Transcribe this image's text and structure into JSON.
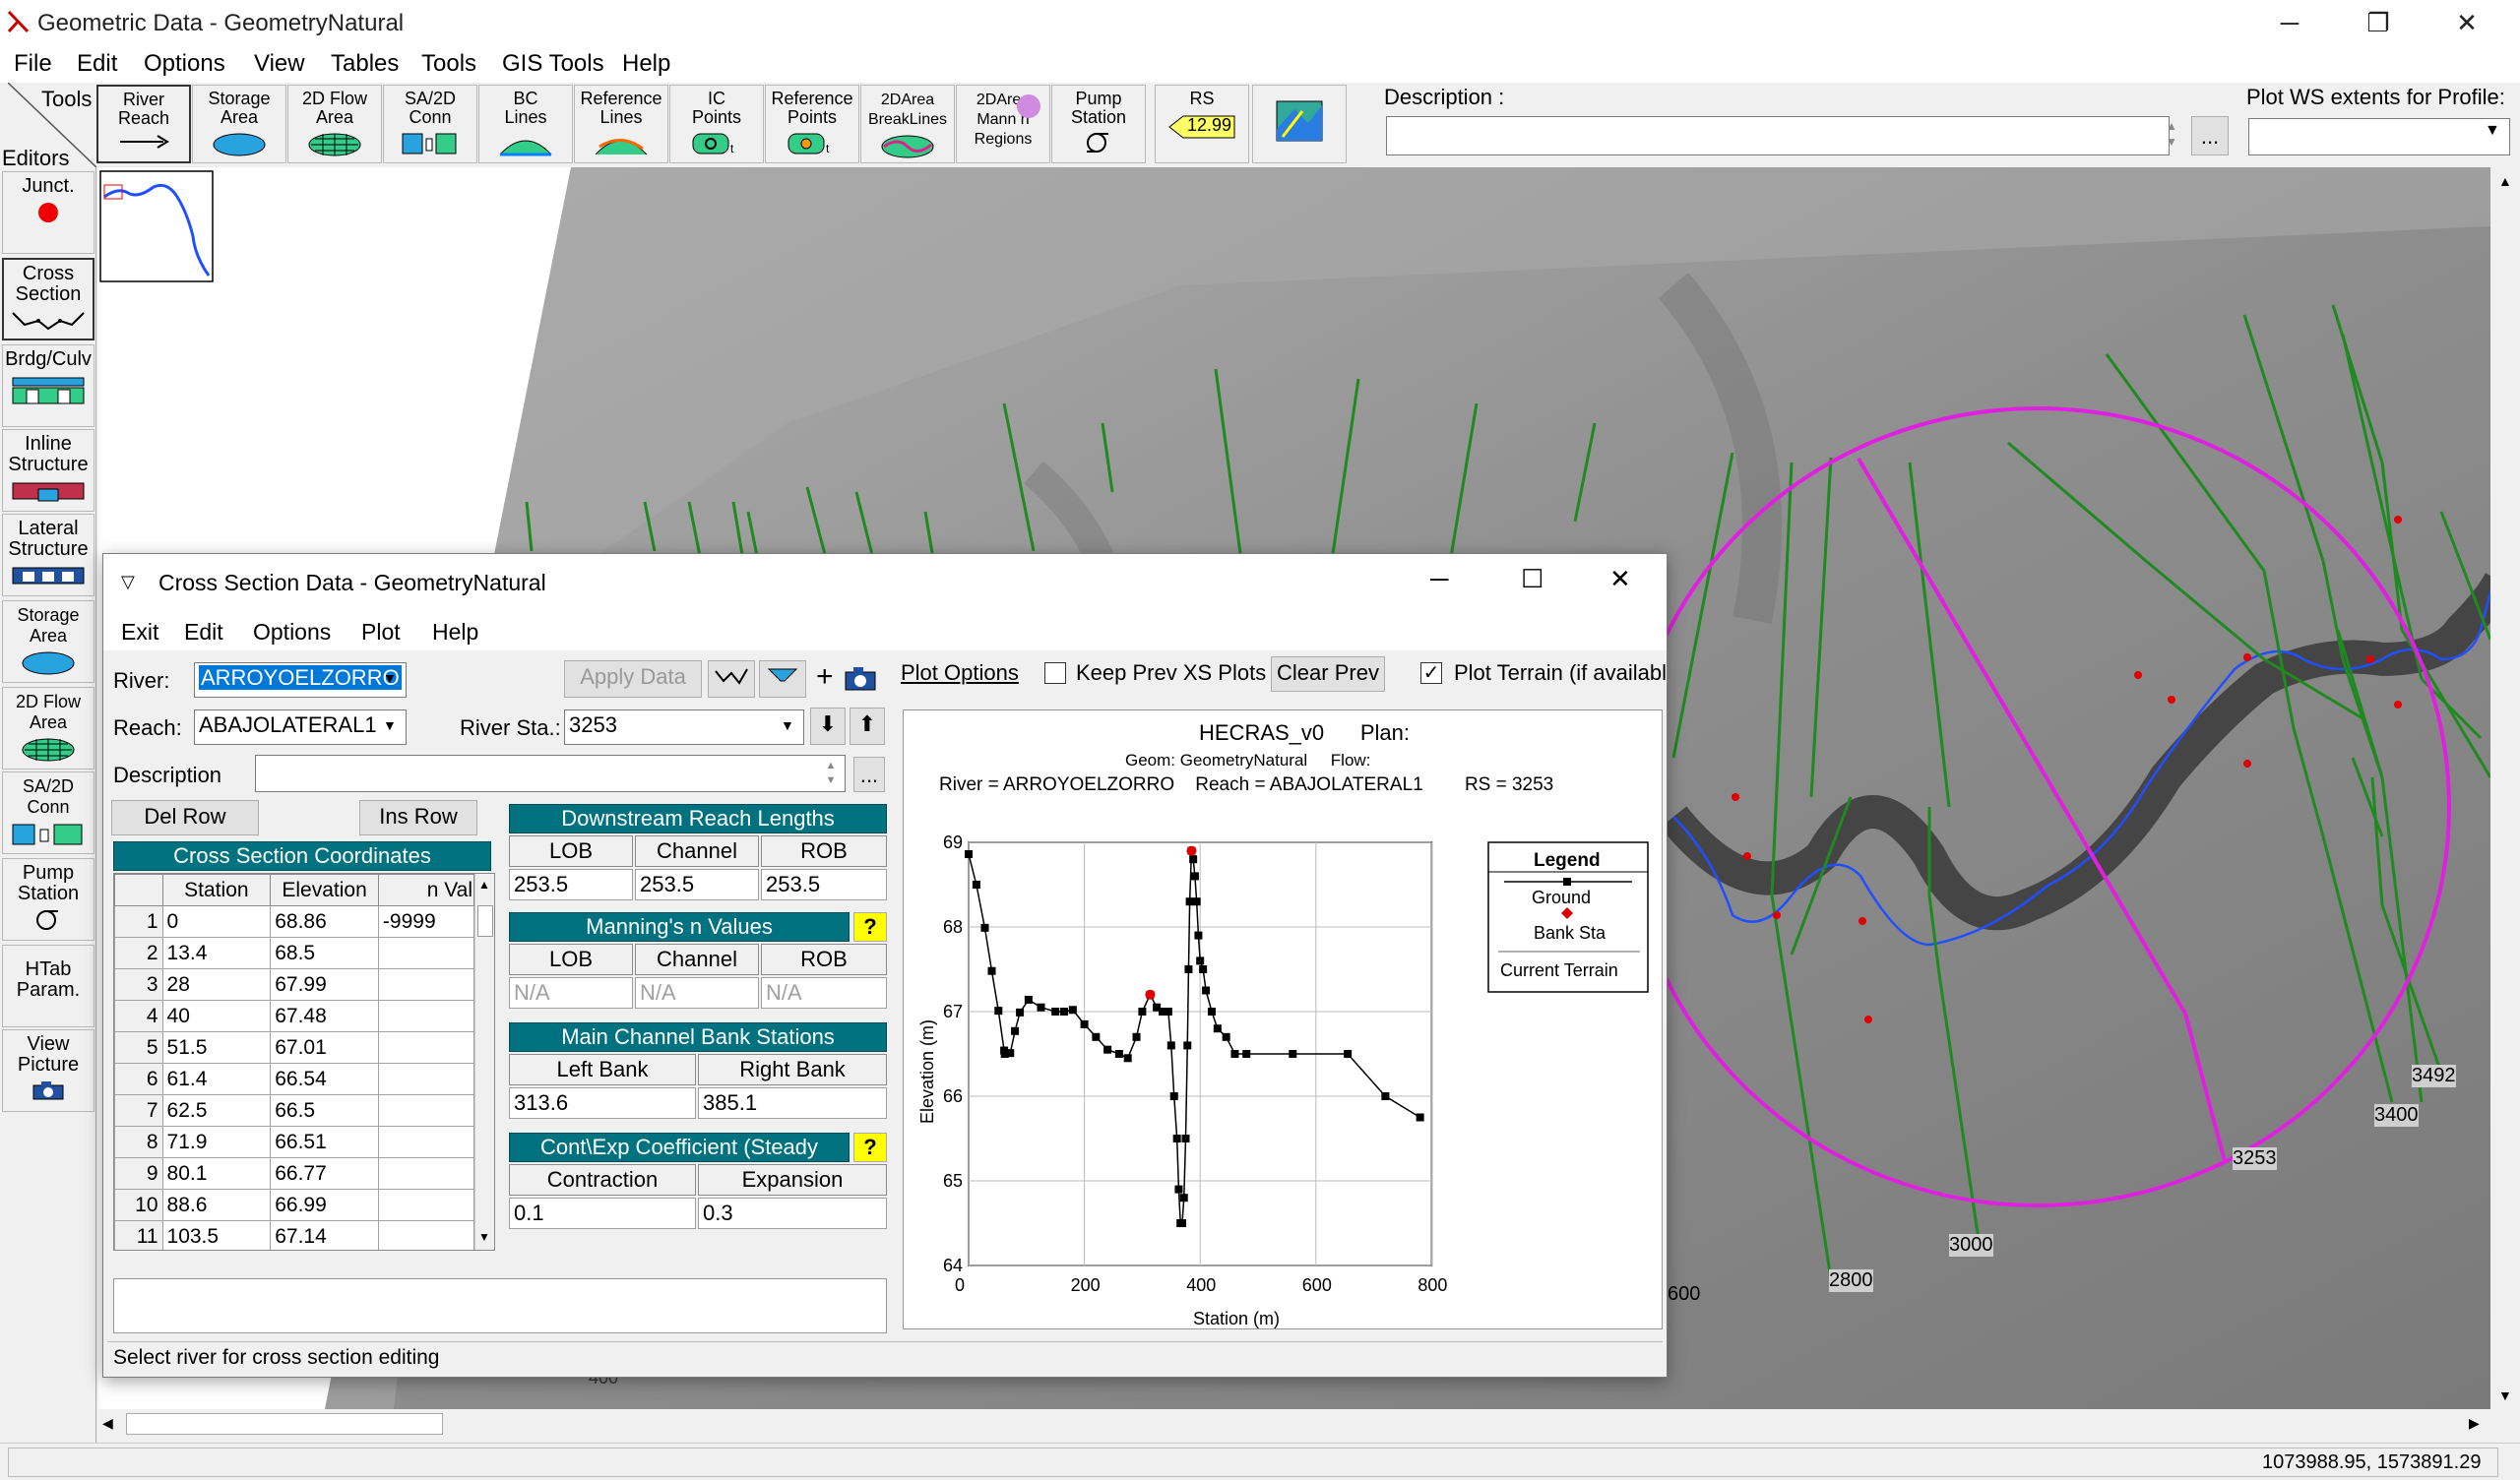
{
  "window": {
    "title": "Geometric Data - GeometryNatural",
    "minimize": "─",
    "maximize": "❐",
    "close": "✕"
  },
  "menu": [
    "File",
    "Edit",
    "Options",
    "View",
    "Tables",
    "Tools",
    "GIS Tools",
    "Help"
  ],
  "toolbar": {
    "tools_label": "Tools",
    "editors_label": "Editors",
    "buttons": [
      {
        "label": "River\nReach",
        "icon": "river-reach-icon"
      },
      {
        "label": "Storage\nArea",
        "icon": "storage-area-icon"
      },
      {
        "label": "2D Flow\nArea",
        "icon": "2d-flow-area-icon"
      },
      {
        "label": "SA/2D\nConn",
        "icon": "sa-2d-conn-icon"
      },
      {
        "label": "BC\nLines",
        "icon": "bc-lines-icon"
      },
      {
        "label": "Reference\nLines",
        "icon": "reference-lines-icon"
      },
      {
        "label": "IC\nPoints",
        "icon": "ic-points-icon"
      },
      {
        "label": "Reference\nPoints",
        "icon": "reference-points-icon"
      },
      {
        "label": "2DArea\nBreakLines",
        "icon": "breaklines-icon"
      },
      {
        "label": "2DArea\nMann n\nRegions",
        "icon": "mann-regions-icon"
      },
      {
        "label": "Pump\nStation",
        "icon": "pump-station-icon"
      },
      {
        "label": "RS",
        "icon": "rs-icon",
        "badge": "12.99"
      },
      {
        "label": "",
        "icon": "map-layers-icon"
      }
    ],
    "description_label": "Description :",
    "description_value": "",
    "ellipsis": "...",
    "plot_ws_label": "Plot WS extents for Profile:",
    "plot_ws_value": ""
  },
  "editors": [
    {
      "label": "Junct.",
      "icon": "junction-icon"
    },
    {
      "label": "Cross\nSection",
      "icon": "cross-section-icon"
    },
    {
      "label": "Brdg/Culv",
      "icon": "bridge-culvert-icon"
    },
    {
      "label": "Inline\nStructure",
      "icon": "inline-structure-icon"
    },
    {
      "label": "Lateral\nStructure",
      "icon": "lateral-structure-icon"
    },
    {
      "label": "Storage\nArea",
      "icon": "storage-area-icon"
    },
    {
      "label": "2D Flow\nArea",
      "icon": "2d-flow-area-icon"
    },
    {
      "label": "SA/2D\nConn",
      "icon": "sa-2d-conn-icon"
    },
    {
      "label": "Pump\nStation",
      "icon": "pump-station-icon"
    },
    {
      "label": "HTab\nParam.",
      "icon": ""
    },
    {
      "label": "View\nPicture",
      "icon": "camera-icon"
    }
  ],
  "map": {
    "xs_labels": [
      "3492",
      "3400",
      "3253",
      "3000",
      "2800",
      "600",
      "400"
    ]
  },
  "status": {
    "coords": "1073988.95, 1573891.29"
  },
  "xs_dialog": {
    "title": "Cross Section Data - GeometryNatural",
    "menu": [
      "Exit",
      "Edit",
      "Options",
      "Plot",
      "Help"
    ],
    "river_label": "River:",
    "river_value": "ARROYOELZORRO",
    "reach_label": "Reach:",
    "reach_value": "ABAJOLATERAL1",
    "river_sta_label": "River Sta.:",
    "river_sta_value": "3253",
    "apply_data": "Apply Data",
    "description_label": "Description",
    "description_value": "",
    "del_row": "Del Row",
    "ins_row": "Ins Row",
    "coords_title": "Cross Section Coordinates",
    "coords_headers": [
      "Station",
      "Elevation",
      "n Val"
    ],
    "coords_rows": [
      [
        "1",
        "0",
        "68.86",
        "-9999"
      ],
      [
        "2",
        "13.4",
        "68.5",
        ""
      ],
      [
        "3",
        "28",
        "67.99",
        ""
      ],
      [
        "4",
        "40",
        "67.48",
        ""
      ],
      [
        "5",
        "51.5",
        "67.01",
        ""
      ],
      [
        "6",
        "61.4",
        "66.54",
        ""
      ],
      [
        "7",
        "62.5",
        "66.5",
        ""
      ],
      [
        "8",
        "71.9",
        "66.51",
        ""
      ],
      [
        "9",
        "80.1",
        "66.77",
        ""
      ],
      [
        "10",
        "88.6",
        "66.99",
        ""
      ],
      [
        "11",
        "103.5",
        "67.14",
        ""
      ]
    ],
    "downstream_title": "Downstream Reach Lengths",
    "ds_headers": [
      "LOB",
      "Channel",
      "ROB"
    ],
    "ds_values": [
      "253.5",
      "253.5",
      "253.5"
    ],
    "manning_title": "Manning's n Values",
    "mann_headers": [
      "LOB",
      "Channel",
      "ROB"
    ],
    "mann_values": [
      "N/A",
      "N/A",
      "N/A"
    ],
    "bank_title": "Main Channel Bank Stations",
    "bank_headers": [
      "Left Bank",
      "Right Bank"
    ],
    "bank_values": [
      "313.6",
      "385.1"
    ],
    "coef_title": "Cont\\Exp Coefficient (Steady",
    "coef_headers": [
      "Contraction",
      "Expansion"
    ],
    "coef_values": [
      "0.1",
      "0.3"
    ],
    "help_q": "?",
    "plot_options": "Plot Options",
    "keep_prev": "Keep Prev XS Plots",
    "clear_prev": "Clear Prev",
    "plot_terrain": "Plot Terrain (if availabl",
    "status": "Select river for cross section editing"
  },
  "chart_data": {
    "type": "line",
    "title": "HECRAS_v0      Plan:",
    "subtitle1": "Geom: GeometryNatural     Flow:",
    "subtitle2": "River = ARROYOELZORRO    Reach = ABAJOLATERAL1        RS = 3253",
    "xlabel": "Station (m)",
    "ylabel": "Elevation (m)",
    "xlim": [
      0,
      800
    ],
    "ylim": [
      64,
      69
    ],
    "xticks": [
      0,
      200,
      400,
      600,
      800
    ],
    "yticks": [
      64,
      65,
      66,
      67,
      68,
      69
    ],
    "grid": true,
    "legend": {
      "title": "Legend",
      "items": [
        "Ground",
        "Bank Sta",
        "Current Terrain"
      ],
      "placement": "right"
    },
    "series": [
      {
        "name": "Ground",
        "color": "#000000",
        "x": [
          0,
          13.4,
          28,
          40,
          51.5,
          61.4,
          62.5,
          71.9,
          80.1,
          88.6,
          103.5,
          125,
          150,
          165,
          180,
          200,
          220,
          240,
          260,
          275,
          290,
          300,
          313.6,
          325,
          335,
          345,
          350,
          355,
          360,
          363,
          366,
          369,
          372,
          375,
          378,
          380,
          382,
          385.1,
          388,
          391,
          394,
          397,
          400,
          405,
          410,
          420,
          430,
          445,
          460,
          480,
          560,
          655,
          720,
          780
        ],
        "y": [
          68.86,
          68.5,
          67.99,
          67.48,
          67.01,
          66.54,
          66.5,
          66.51,
          66.77,
          66.99,
          67.14,
          67.05,
          67.0,
          67.0,
          67.02,
          66.85,
          66.7,
          66.55,
          66.5,
          66.45,
          66.7,
          67.0,
          67.2,
          67.05,
          67.0,
          67.0,
          66.6,
          66.0,
          65.5,
          64.9,
          64.5,
          64.5,
          64.8,
          65.5,
          66.6,
          67.5,
          68.3,
          68.9,
          68.8,
          68.6,
          68.3,
          67.9,
          67.6,
          67.5,
          67.25,
          67.0,
          66.8,
          66.7,
          66.5,
          66.5,
          66.5,
          66.5,
          66.0,
          65.75
        ]
      },
      {
        "name": "Bank Sta",
        "color": "#e00000",
        "x": [
          313.6,
          385.1
        ],
        "y": [
          67.2,
          68.9
        ]
      }
    ]
  }
}
